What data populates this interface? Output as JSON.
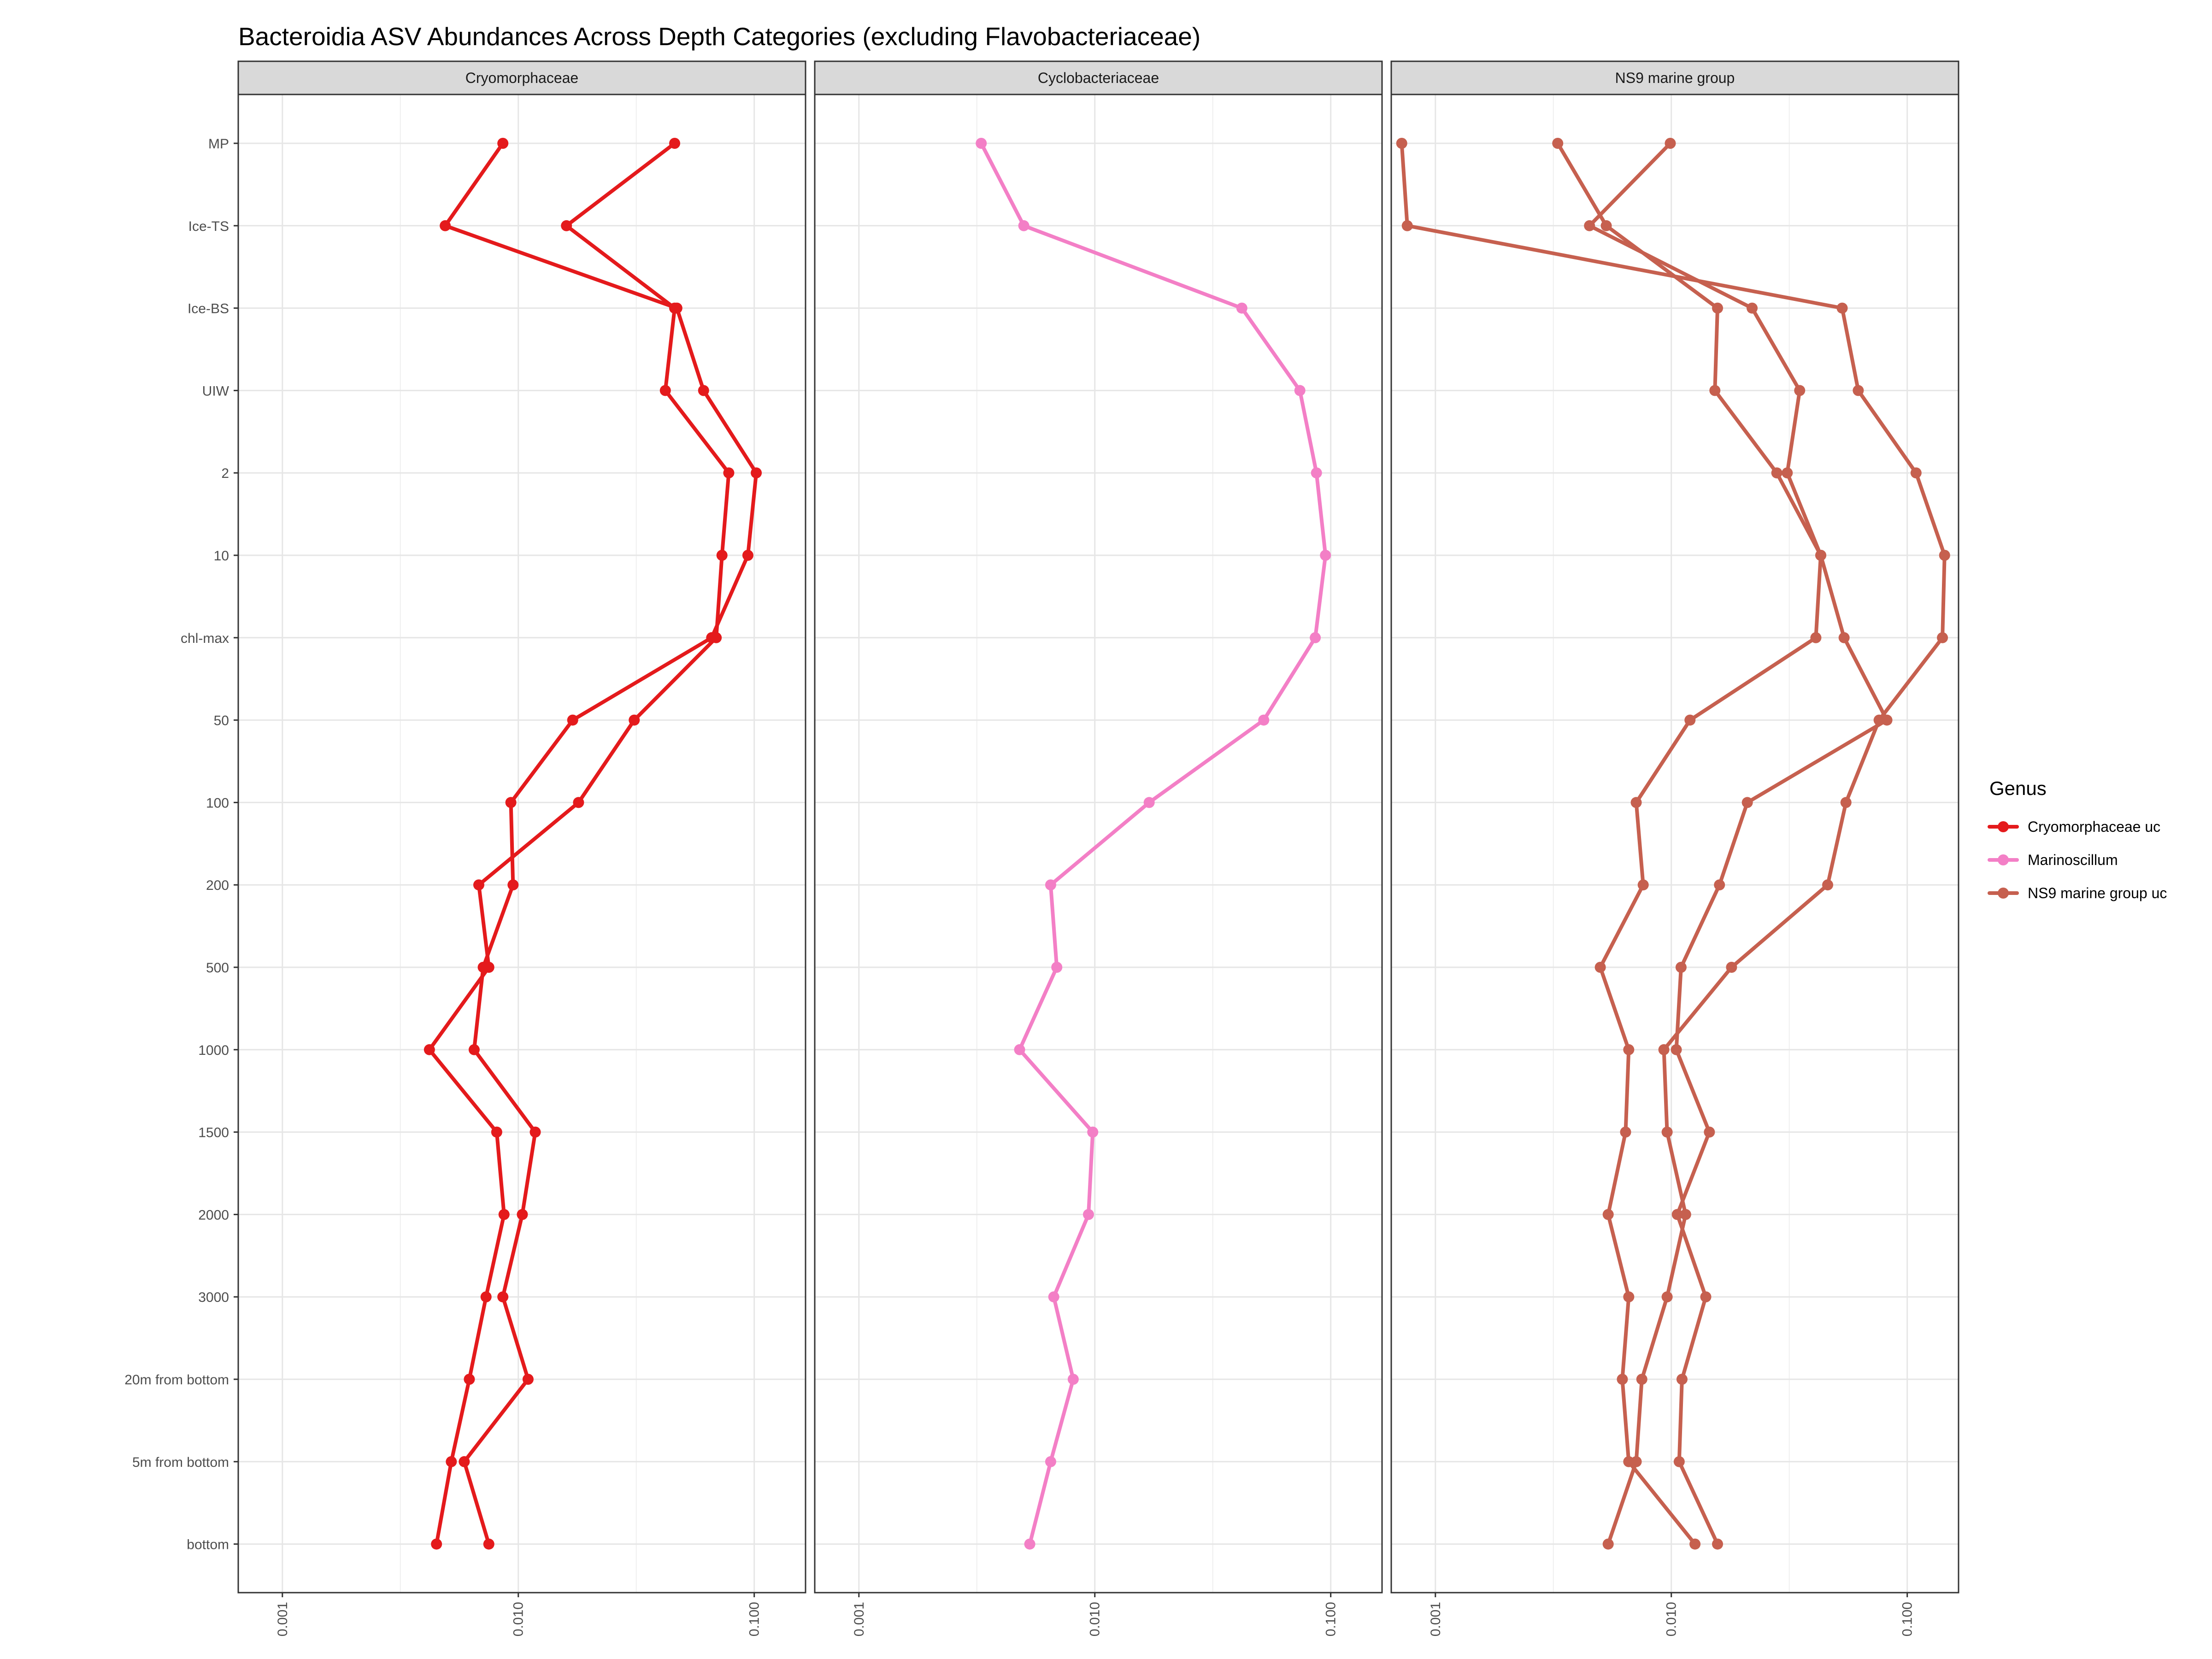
{
  "chart_data": {
    "type": "line",
    "title": "Bacteroidia ASV Abundances Across Depth Categories (excluding Flavobacteriaceae)",
    "xlabel": "",
    "ylabel": "",
    "x_scale": "log10",
    "x_ticks": [
      0.001,
      0.01,
      0.1
    ],
    "x_tick_labels": [
      "0.001",
      "0.010",
      "0.100"
    ],
    "xlim": [
      0.00065,
      0.165
    ],
    "grid": true,
    "legend_position": "right",
    "legend_title": "Genus",
    "depth_categories": [
      "MP",
      "Ice-TS",
      "Ice-BS",
      "UIW",
      "2",
      "10",
      "chl-max",
      "50",
      "100",
      "200",
      "500",
      "1000",
      "1500",
      "2000",
      "3000",
      "20m from bottom",
      "5m from bottom",
      "bottom"
    ],
    "genera": [
      {
        "name": "Cryomorphaceae uc",
        "color": "#e41a1c"
      },
      {
        "name": "Marinoscillum",
        "color": "#f37fc6"
      },
      {
        "name": "NS9 marine group uc",
        "color": "#c6604f"
      }
    ],
    "panels": [
      {
        "name": "Cryomorphaceae",
        "series": [
          {
            "genus": "Cryomorphaceae uc",
            "values": [
              0.0086,
              0.0049,
              0.047,
              0.061,
              0.102,
              0.094,
              0.066,
              0.017,
              0.0093,
              0.0095,
              0.0071,
              0.0065,
              0.0118,
              0.0104,
              0.0086,
              0.011,
              0.0059,
              0.0075
            ]
          },
          {
            "genus": "Cryomorphaceae uc",
            "values": [
              0.046,
              0.016,
              0.046,
              0.042,
              0.078,
              0.073,
              0.069,
              0.031,
              0.018,
              0.0068,
              0.0075,
              0.0042,
              0.0081,
              0.0087,
              0.0073,
              0.0062,
              0.0052,
              0.0045
            ]
          }
        ]
      },
      {
        "name": "Cyclobacteriaceae",
        "series": [
          {
            "genus": "Marinoscillum",
            "values": [
              0.0033,
              0.005,
              0.042,
              0.074,
              0.087,
              0.095,
              0.086,
              0.052,
              0.017,
              0.0065,
              0.0069,
              0.0048,
              0.0098,
              0.0094,
              0.0067,
              0.0081,
              0.0065,
              0.0053
            ]
          }
        ]
      },
      {
        "name": "NS9 marine group",
        "series": [
          {
            "genus": "NS9 marine group uc",
            "values": [
              0.00072,
              0.00076,
              0.053,
              0.062,
              0.109,
              0.144,
              0.141,
              0.076,
              0.055,
              0.046,
              0.018,
              0.0093,
              0.0096,
              0.0115,
              0.0096,
              0.0075,
              0.0071,
              0.0054
            ]
          },
          {
            "genus": "NS9 marine group uc",
            "values": [
              0.0099,
              0.0045,
              0.022,
              0.035,
              0.031,
              0.043,
              0.054,
              0.082,
              0.021,
              0.016,
              0.011,
              0.0105,
              0.0145,
              0.0106,
              0.014,
              0.0111,
              0.0108,
              0.0157
            ]
          },
          {
            "genus": "NS9 marine group uc",
            "values": [
              0.0033,
              0.0053,
              0.0157,
              0.0153,
              0.028,
              0.043,
              0.041,
              0.012,
              0.0071,
              0.0076,
              0.005,
              0.0066,
              0.0064,
              0.0054,
              0.0066,
              0.0062,
              0.0066,
              0.0126
            ]
          }
        ]
      }
    ]
  }
}
